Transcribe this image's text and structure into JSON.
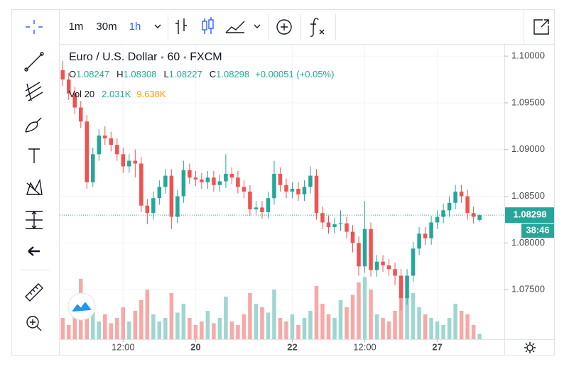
{
  "toolbar": {
    "intervals": [
      "1m",
      "30m",
      "1h"
    ],
    "active_interval": 2
  },
  "legend": {
    "symbol": "Euro / U.S. Dollar",
    "interval": "60",
    "exchange": "FXCM",
    "ohlc": [
      {
        "label": "O",
        "value": "1.08247"
      },
      {
        "label": "H",
        "value": "1.08308"
      },
      {
        "label": "L",
        "value": "1.08227"
      },
      {
        "label": "C",
        "value": "1.08298"
      }
    ],
    "change": "+0.00051 (+0.05%)",
    "volume_label": "Vol 20",
    "volume_value": "2.031K",
    "volume_ma": "9.638K"
  },
  "chart_data": {
    "type": "candlestick",
    "up_color": "#26a69a",
    "down_color": "#ef5350",
    "volume_up_color": "#9fd7d0",
    "volume_down_color": "#f6a9a7",
    "grid": true,
    "xlim": [
      -0.5,
      73.1
    ],
    "xticks": [
      {
        "value": 10,
        "label": "12:00"
      },
      {
        "value": 22,
        "label": "20"
      },
      {
        "value": 38,
        "label": "22"
      },
      {
        "value": 50,
        "label": "12:00"
      },
      {
        "value": 62,
        "label": "27"
      }
    ],
    "ylim": [
      1.0697,
      1.1013
    ],
    "yticks": [
      {
        "value": 1.075,
        "label": "1.07500"
      },
      {
        "value": 1.08,
        "label": "1.08000"
      },
      {
        "value": 1.085,
        "label": "1.08500"
      },
      {
        "value": 1.09,
        "label": "1.09000"
      },
      {
        "value": 1.095,
        "label": "1.09500"
      },
      {
        "value": 1.1,
        "label": "1.10000"
      }
    ],
    "vlim": [
      0,
      40
    ],
    "last_price": 1.08298,
    "countdown": "38:46",
    "open": [
      1.0985,
      1.0975,
      1.096,
      1.0945,
      1.093,
      1.0865,
      1.0895,
      1.0915,
      1.0912,
      1.0905,
      1.0895,
      1.0882,
      1.0888,
      1.0885,
      1.084,
      1.0832,
      1.0848,
      1.086,
      1.0872,
      1.0828,
      1.085,
      1.0878,
      1.087,
      1.0868,
      1.0865,
      1.087,
      1.0862,
      1.0866,
      1.0874,
      1.087,
      1.086,
      1.0855,
      1.0836,
      1.0838,
      1.0833,
      1.0848,
      1.0874,
      1.0862,
      1.0855,
      1.0858,
      1.0852,
      1.086,
      1.0872,
      1.0832,
      1.0822,
      1.0817,
      1.082,
      1.0821,
      1.0812,
      1.08,
      1.0775,
      1.0815,
      1.0771,
      1.078,
      1.0776,
      1.0772,
      1.0765,
      1.0741,
      1.0765,
      1.0794,
      1.081,
      1.0805,
      1.0822,
      1.0828,
      1.0835,
      1.0843,
      1.0855,
      1.085,
      1.0832,
      1.08247
    ],
    "high": [
      1.0995,
      1.0982,
      1.0967,
      1.0952,
      1.0937,
      1.0902,
      1.0922,
      1.0925,
      1.0919,
      1.0912,
      1.0902,
      1.0895,
      1.09,
      1.0892,
      1.0847,
      1.0855,
      1.0867,
      1.0879,
      1.0879,
      1.0857,
      1.0888,
      1.0885,
      1.0877,
      1.0875,
      1.0877,
      1.0877,
      1.0873,
      1.0895,
      1.0881,
      1.0877,
      1.0867,
      1.0862,
      1.0845,
      1.0845,
      1.0855,
      1.0888,
      1.0881,
      1.0869,
      1.0865,
      1.0865,
      1.0867,
      1.0882,
      1.0879,
      1.0839,
      1.0829,
      1.0827,
      1.0835,
      1.0828,
      1.0819,
      1.0807,
      1.0845,
      1.0822,
      1.0787,
      1.0787,
      1.0783,
      1.0779,
      1.0772,
      1.0772,
      1.0801,
      1.0817,
      1.0817,
      1.0829,
      1.0835,
      1.0842,
      1.085,
      1.0862,
      1.0862,
      1.0857,
      1.0839,
      1.08308
    ],
    "low": [
      1.0968,
      1.0953,
      1.0938,
      1.0923,
      1.0858,
      1.086,
      1.0888,
      1.0905,
      1.0898,
      1.0888,
      1.0875,
      1.0875,
      1.087,
      1.0833,
      1.082,
      1.0825,
      1.0841,
      1.0853,
      1.0815,
      1.0821,
      1.0843,
      1.0863,
      1.0861,
      1.0858,
      1.0858,
      1.0855,
      1.0855,
      1.0859,
      1.0863,
      1.0853,
      1.0848,
      1.0829,
      1.0829,
      1.0826,
      1.0826,
      1.0841,
      1.0855,
      1.0848,
      1.0848,
      1.0845,
      1.0845,
      1.0853,
      1.0825,
      1.0815,
      1.081,
      1.081,
      1.0813,
      1.0805,
      1.079,
      1.0765,
      1.0768,
      1.0764,
      1.0764,
      1.0769,
      1.0765,
      1.0755,
      1.0728,
      1.0734,
      1.0758,
      1.0787,
      1.0798,
      1.0798,
      1.0815,
      1.0821,
      1.0828,
      1.0836,
      1.0843,
      1.0825,
      1.0821,
      1.08227
    ],
    "close": [
      1.0975,
      1.096,
      1.0945,
      1.093,
      1.0865,
      1.0895,
      1.0915,
      1.0912,
      1.0905,
      1.0895,
      1.0882,
      1.0888,
      1.0885,
      1.084,
      1.0832,
      1.0848,
      1.086,
      1.0872,
      1.0828,
      1.085,
      1.0878,
      1.087,
      1.0868,
      1.0865,
      1.087,
      1.0862,
      1.0866,
      1.0874,
      1.087,
      1.086,
      1.0855,
      1.0836,
      1.0838,
      1.0833,
      1.0848,
      1.0874,
      1.0862,
      1.0855,
      1.0858,
      1.0852,
      1.086,
      1.0872,
      1.0832,
      1.0822,
      1.0817,
      1.082,
      1.0821,
      1.0812,
      1.08,
      1.0775,
      1.0815,
      1.0771,
      1.078,
      1.0776,
      1.0772,
      1.0765,
      1.0741,
      1.0765,
      1.0794,
      1.081,
      1.0805,
      1.0822,
      1.0828,
      1.0835,
      1.0843,
      1.0855,
      1.085,
      1.0832,
      1.0828,
      1.08298
    ],
    "volume": [
      12,
      8,
      20,
      34,
      25,
      15,
      10,
      14,
      9,
      12,
      18,
      10,
      16,
      22,
      28,
      14,
      10,
      12,
      26,
      15,
      20,
      12,
      8,
      10,
      16,
      9,
      12,
      24,
      10,
      8,
      14,
      26,
      20,
      18,
      15,
      28,
      12,
      10,
      14,
      8,
      12,
      16,
      30,
      20,
      14,
      12,
      22,
      18,
      25,
      32,
      35,
      28,
      14,
      12,
      10,
      16,
      30,
      24,
      26,
      18,
      14,
      12,
      10,
      8,
      12,
      20,
      16,
      14,
      8,
      3
    ]
  }
}
